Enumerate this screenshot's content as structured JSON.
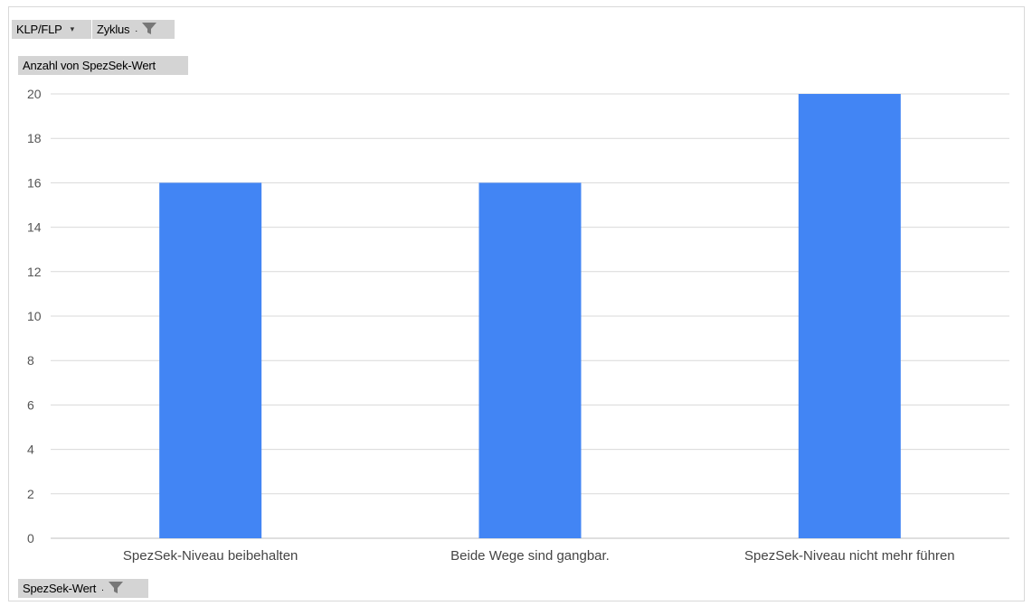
{
  "filters": {
    "report_field_1": "KLP/FLP",
    "report_field_2": "Zyklus"
  },
  "value_field_label": "Anzahl von SpezSek-Wert",
  "axis_field_label": "SpezSek-Wert",
  "icons": {
    "dropdown": "dropdown-arrow-icon",
    "filter": "funnel-filter-icon"
  },
  "colors": {
    "bar": "#4285f4",
    "grid": "#d9d9d9",
    "field_button": "#d4d4d4"
  },
  "chart_data": {
    "type": "bar",
    "categories": [
      "SpezSek-Niveau beibehalten",
      "Beide Wege sind gangbar.",
      "SpezSek-Niveau nicht mehr führen"
    ],
    "values": [
      16,
      16,
      20
    ],
    "ylim": [
      0,
      20
    ],
    "yticks": [
      0,
      2,
      4,
      6,
      8,
      10,
      12,
      14,
      16,
      18,
      20
    ],
    "grid": true,
    "legend": "none"
  }
}
